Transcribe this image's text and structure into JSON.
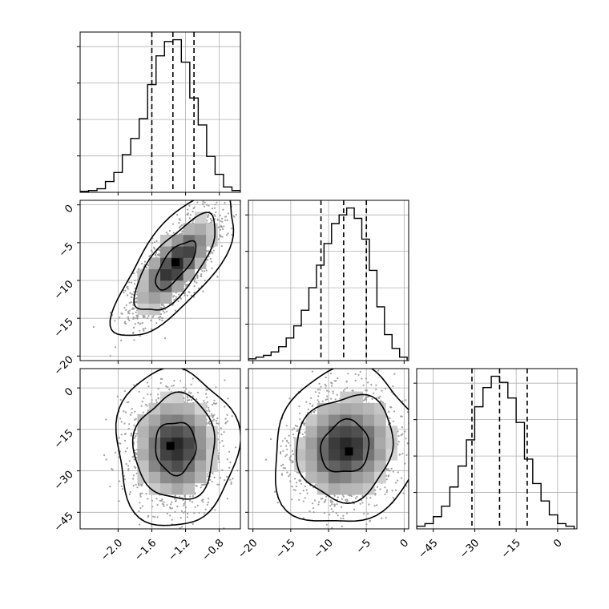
{
  "chart_data": {
    "type": "corner",
    "grid": true,
    "colors": {
      "points": "#a0a0a0",
      "lines": "#000000",
      "density_low": "#e8e8e8",
      "density_high": "#000000",
      "gridlines": "#b0b0b0"
    },
    "parameters": [
      {
        "range": [
          -2.45,
          -0.55
        ],
        "ticks": [
          -2.0,
          -1.6,
          -1.2,
          -0.8
        ],
        "tick_labels": [
          "−2.0",
          "−1.6",
          "−1.2",
          "−0.8"
        ],
        "quantiles": [
          -1.6,
          -1.35,
          -1.1
        ]
      },
      {
        "range": [
          -20.6,
          0.6
        ],
        "ticks": [
          -20,
          -15,
          -10,
          -5,
          0
        ],
        "tick_labels": [
          "−20",
          "−15",
          "−10",
          "−5",
          "0"
        ],
        "quantiles": [
          -11.0,
          -8.0,
          -5.0
        ]
      },
      {
        "range": [
          -51,
          7
        ],
        "ticks": [
          -45,
          -30,
          -15,
          0
        ],
        "tick_labels": [
          "−45",
          "−30",
          "−15",
          "0"
        ],
        "quantiles": [
          -31.0,
          -21.0,
          -11.0
        ]
      }
    ],
    "histograms": [
      {
        "bin_edges": [
          -2.45,
          -2.35,
          -2.25,
          -2.15,
          -2.05,
          -1.95,
          -1.85,
          -1.75,
          -1.65,
          -1.55,
          -1.45,
          -1.35,
          -1.25,
          -1.15,
          -1.05,
          -0.95,
          -0.85,
          -0.75,
          -0.65,
          -0.55
        ],
        "counts": [
          1,
          2,
          4,
          12,
          22,
          42,
          60,
          82,
          120,
          152,
          168,
          170,
          145,
          105,
          75,
          40,
          20,
          6,
          2
        ]
      },
      {
        "bin_edges": [
          -20.6,
          -19.6,
          -18.6,
          -17.6,
          -16.6,
          -15.6,
          -14.6,
          -13.6,
          -12.6,
          -11.6,
          -10.6,
          -9.6,
          -8.6,
          -7.6,
          -6.6,
          -5.6,
          -4.6,
          -3.6,
          -2.6,
          -1.6,
          -0.6,
          0.4
        ],
        "counts": [
          2,
          4,
          6,
          10,
          16,
          26,
          40,
          58,
          84,
          110,
          135,
          158,
          168,
          176,
          164,
          140,
          104,
          62,
          30,
          14,
          4
        ]
      },
      {
        "bin_edges": [
          -51,
          -48,
          -45,
          -42,
          -39,
          -36,
          -33,
          -30,
          -27,
          -24,
          -21,
          -18,
          -15,
          -12,
          -9,
          -6,
          -3,
          0,
          3,
          6
        ],
        "counts": [
          3,
          6,
          14,
          26,
          48,
          72,
          102,
          140,
          162,
          175,
          168,
          150,
          122,
          80,
          52,
          32,
          16,
          6,
          3
        ]
      }
    ],
    "pairs": [
      {
        "x_param": 0,
        "y_param": 1,
        "center": [
          -1.32,
          -7.9
        ],
        "sd": [
          0.24,
          3.2
        ],
        "rho": 0.72,
        "peak": [
          -1.32,
          -7.6
        ]
      },
      {
        "x_param": 0,
        "y_param": 2,
        "center": [
          -1.32,
          -21.5
        ],
        "sd": [
          0.24,
          9.5
        ],
        "rho": 0.0,
        "peak": [
          -1.38,
          -21.0
        ]
      },
      {
        "x_param": 1,
        "y_param": 2,
        "center": [
          -7.8,
          -21.5
        ],
        "sd": [
          3.2,
          9.5
        ],
        "rho": 0.1,
        "peak": [
          -7.3,
          -23.0
        ]
      }
    ],
    "contour_levels": [
      0.393,
      0.865,
      0.989
    ]
  }
}
